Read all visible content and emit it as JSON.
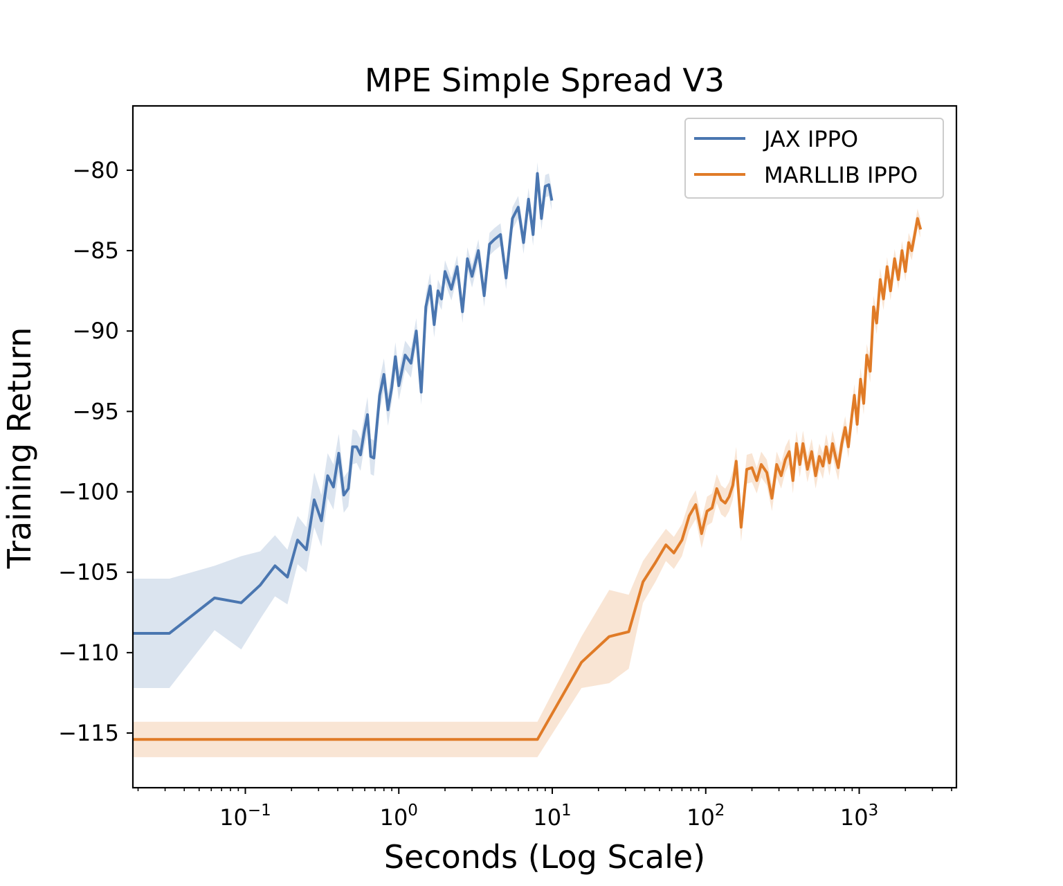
{
  "chart_data": {
    "type": "line",
    "title": "MPE Simple Spread V3",
    "xlabel": "Seconds (Log Scale)",
    "ylabel": "Training Return",
    "xscale": "log",
    "xlim": [
      0.0185,
      4300
    ],
    "ylim": [
      -118.4,
      -76.0
    ],
    "grid": false,
    "legend_position": "top-right",
    "x_ticks": [
      {
        "value": 0.1,
        "base": "10",
        "exp": "−1"
      },
      {
        "value": 1,
        "base": "10",
        "exp": "0"
      },
      {
        "value": 10,
        "base": "10",
        "exp": "1"
      },
      {
        "value": 100,
        "base": "10",
        "exp": "2"
      },
      {
        "value": 1000,
        "base": "10",
        "exp": "3"
      }
    ],
    "y_ticks": [
      {
        "value": -80,
        "label": "−80"
      },
      {
        "value": -85,
        "label": "−85"
      },
      {
        "value": -90,
        "label": "−90"
      },
      {
        "value": -95,
        "label": "−95"
      },
      {
        "value": -100,
        "label": "−100"
      },
      {
        "value": -105,
        "label": "−105"
      },
      {
        "value": -110,
        "label": "−110"
      },
      {
        "value": -115,
        "label": "−115"
      }
    ],
    "series": [
      {
        "name": "JAX IPPO",
        "color": "#4a76b0",
        "band_color": "#4a76b0",
        "x": [
          0.0185,
          0.032,
          0.063,
          0.094,
          0.125,
          0.156,
          0.188,
          0.219,
          0.25,
          0.281,
          0.313,
          0.344,
          0.375,
          0.406,
          0.438,
          0.469,
          0.5,
          0.531,
          0.563,
          0.594,
          0.625,
          0.656,
          0.688,
          0.75,
          0.8,
          0.85,
          0.9,
          0.95,
          1.0,
          1.1,
          1.2,
          1.3,
          1.4,
          1.5,
          1.6,
          1.7,
          1.8,
          1.9,
          2.0,
          2.2,
          2.4,
          2.6,
          2.8,
          3.0,
          3.3,
          3.6,
          3.9,
          4.2,
          4.6,
          5.0,
          5.5,
          6.0,
          6.5,
          7.0,
          7.5,
          8.0,
          8.5,
          9.0,
          9.5,
          9.9
        ],
        "y": [
          -108.8,
          -108.8,
          -106.6,
          -106.9,
          -105.8,
          -104.6,
          -105.3,
          -103.0,
          -103.6,
          -100.5,
          -101.8,
          -99.0,
          -99.7,
          -97.6,
          -100.2,
          -99.8,
          -97.2,
          -97.2,
          -97.7,
          -96.3,
          -95.2,
          -97.8,
          -97.9,
          -94.0,
          -92.7,
          -94.9,
          -93.5,
          -91.6,
          -93.4,
          -91.5,
          -92.0,
          -90.0,
          -93.8,
          -88.5,
          -87.2,
          -89.6,
          -87.5,
          -88.0,
          -86.3,
          -87.4,
          -86.0,
          -88.8,
          -85.5,
          -86.6,
          -85.0,
          -87.8,
          -84.6,
          -84.3,
          -84.0,
          -86.7,
          -83.0,
          -82.3,
          -84.5,
          -81.8,
          -84.0,
          -80.2,
          -83.0,
          -81.0,
          -80.9,
          -81.8
        ],
        "half_width": [
          3.4,
          3.4,
          2.0,
          2.9,
          2.1,
          1.9,
          1.7,
          1.5,
          1.4,
          1.7,
          1.6,
          1.4,
          1.4,
          1.2,
          1.1,
          1.1,
          1.1,
          1.0,
          1.0,
          1.0,
          1.1,
          1.1,
          1.1,
          1.0,
          1.0,
          1.0,
          0.9,
          0.9,
          0.9,
          0.9,
          0.9,
          0.8,
          0.8,
          0.8,
          0.8,
          0.8,
          0.7,
          0.7,
          0.7,
          0.7,
          0.7,
          0.7,
          0.7,
          0.7,
          0.7,
          0.7,
          0.7,
          0.7,
          0.7,
          0.7,
          0.7,
          0.7,
          0.7,
          0.7,
          0.7,
          0.7,
          0.7,
          0.7,
          0.7,
          0.7
        ]
      },
      {
        "name": "MARLLIB IPPO",
        "color": "#e07b27",
        "band_color": "#e07b27",
        "x": [
          0.0185,
          8.0,
          15.5,
          23.5,
          31.5,
          39.0,
          47.0,
          55.0,
          62.0,
          70.0,
          78.0,
          86.0,
          94.0,
          102,
          110,
          118,
          126,
          134,
          142,
          150,
          158,
          170,
          185,
          200,
          215,
          230,
          250,
          270,
          290,
          310,
          330,
          350,
          370,
          390,
          410,
          430,
          460,
          490,
          520,
          550,
          580,
          610,
          640,
          670,
          700,
          730,
          770,
          810,
          850,
          890,
          930,
          970,
          1020,
          1070,
          1120,
          1180,
          1240,
          1300,
          1370,
          1440,
          1520,
          1600,
          1700,
          1800,
          1900,
          2000,
          2100,
          2200,
          2300,
          2400,
          2500
        ],
        "y": [
          -115.4,
          -115.4,
          -110.6,
          -109.0,
          -108.7,
          -105.6,
          -104.4,
          -103.3,
          -103.8,
          -103.0,
          -101.5,
          -100.8,
          -102.6,
          -101.2,
          -101.0,
          -99.8,
          -100.5,
          -100.7,
          -100.3,
          -99.6,
          -98.1,
          -102.2,
          -98.6,
          -98.5,
          -99.3,
          -98.3,
          -98.8,
          -100.4,
          -98.3,
          -99.0,
          -98.0,
          -97.5,
          -99.3,
          -97.0,
          -98.3,
          -97.0,
          -98.6,
          -97.5,
          -99.0,
          -97.8,
          -98.4,
          -97.2,
          -98.2,
          -97.0,
          -97.8,
          -98.5,
          -97.0,
          -96.0,
          -97.2,
          -95.5,
          -94.0,
          -95.8,
          -93.0,
          -94.5,
          -91.5,
          -92.5,
          -88.5,
          -89.5,
          -86.8,
          -88.0,
          -86.0,
          -87.5,
          -85.5,
          -86.8,
          -85.0,
          -86.3,
          -84.5,
          -85.0,
          -84.0,
          -83.0,
          -83.6
        ],
        "half_width": [
          1.1,
          1.1,
          1.6,
          2.9,
          2.3,
          1.3,
          1.2,
          1.0,
          1.0,
          1.0,
          0.9,
          0.9,
          0.9,
          0.9,
          0.9,
          0.9,
          0.9,
          0.9,
          0.9,
          0.9,
          0.9,
          0.9,
          0.9,
          0.9,
          0.8,
          0.8,
          0.8,
          0.8,
          0.8,
          0.8,
          0.8,
          0.8,
          0.8,
          0.8,
          0.8,
          0.8,
          0.8,
          0.8,
          0.8,
          0.8,
          0.8,
          0.8,
          0.8,
          0.8,
          0.8,
          0.8,
          0.7,
          0.7,
          0.7,
          0.7,
          0.7,
          0.7,
          0.7,
          0.7,
          0.7,
          0.7,
          0.7,
          0.7,
          0.7,
          0.7,
          0.6,
          0.6,
          0.6,
          0.6,
          0.6,
          0.6,
          0.6,
          0.6,
          0.6,
          0.6,
          0.6
        ]
      }
    ]
  }
}
